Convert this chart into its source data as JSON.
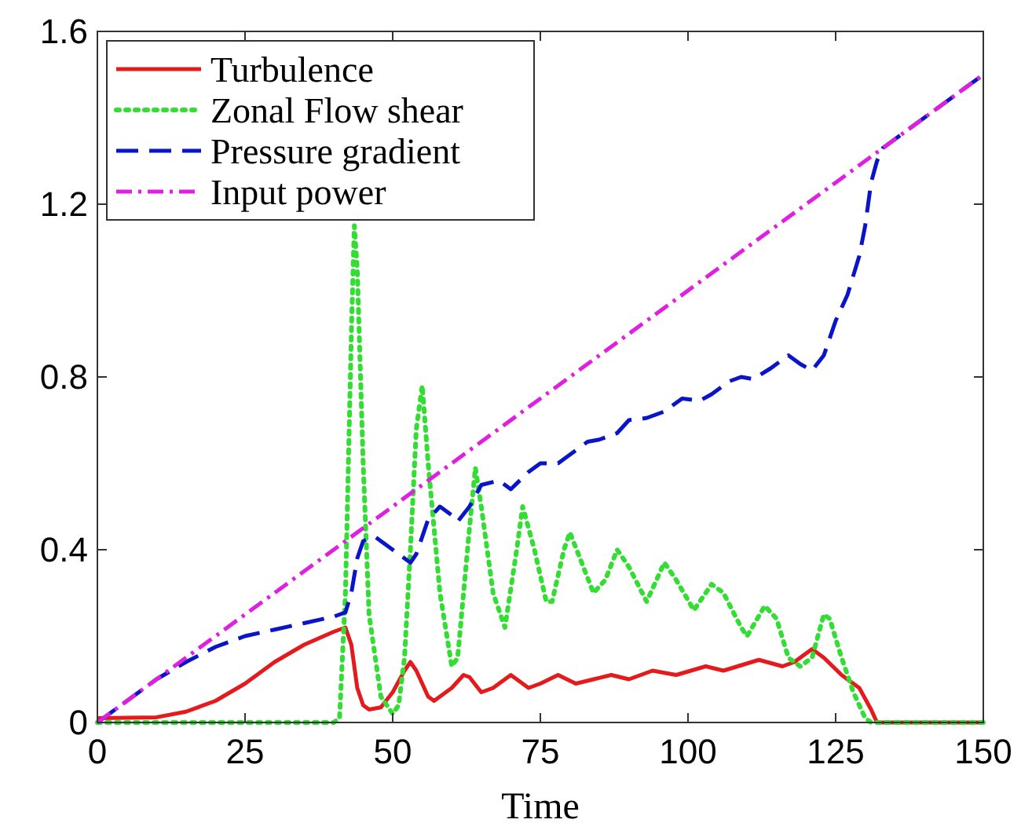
{
  "chart_data": {
    "type": "line",
    "xlabel": "Time",
    "xlim": [
      0,
      150
    ],
    "ylim": [
      0,
      1.6
    ],
    "xticks": [
      0,
      25,
      50,
      75,
      100,
      125,
      150
    ],
    "yticks": [
      0,
      0.4,
      0.8,
      1.2,
      1.6
    ],
    "grid": false,
    "legend": "top left",
    "series": [
      {
        "name": "Turbulence",
        "color": "#e41a1c",
        "line_style": "solid",
        "x": [
          0,
          10,
          15,
          20,
          25,
          30,
          35,
          40,
          42,
          43,
          44,
          45,
          46,
          48,
          50,
          52,
          53,
          54,
          56,
          57,
          60,
          62,
          63,
          65,
          67,
          70,
          71,
          73,
          75,
          78,
          81,
          84,
          87,
          90,
          94,
          98,
          103,
          106,
          112,
          116,
          118,
          121,
          123,
          126,
          129,
          131,
          132,
          150
        ],
        "values": [
          0.01,
          0.012,
          0.025,
          0.05,
          0.09,
          0.14,
          0.18,
          0.21,
          0.22,
          0.18,
          0.08,
          0.04,
          0.03,
          0.035,
          0.07,
          0.12,
          0.14,
          0.12,
          0.06,
          0.05,
          0.08,
          0.11,
          0.105,
          0.07,
          0.08,
          0.11,
          0.1,
          0.08,
          0.09,
          0.11,
          0.09,
          0.1,
          0.11,
          0.1,
          0.12,
          0.11,
          0.13,
          0.12,
          0.145,
          0.13,
          0.14,
          0.17,
          0.15,
          0.11,
          0.08,
          0.03,
          0,
          0
        ]
      },
      {
        "name": "Zonal Flow shear",
        "color": "#33dd33",
        "line_style": "dotted",
        "x": [
          0,
          40,
          41,
          42,
          43,
          43.5,
          44,
          45,
          46,
          48,
          50,
          51,
          52,
          53,
          54,
          55,
          56,
          58,
          60,
          61,
          63,
          64,
          65,
          67,
          69,
          71,
          72,
          74,
          76,
          77,
          79,
          80,
          82,
          84,
          86,
          88,
          90,
          93,
          96,
          98,
          101,
          104,
          106,
          109,
          110,
          113,
          115,
          117,
          119,
          121,
          123,
          124,
          126,
          128,
          130,
          131,
          150
        ],
        "values": [
          0,
          0,
          0.01,
          0.3,
          0.9,
          1.15,
          1.05,
          0.6,
          0.25,
          0.06,
          0.02,
          0.04,
          0.15,
          0.4,
          0.68,
          0.78,
          0.6,
          0.3,
          0.13,
          0.15,
          0.45,
          0.59,
          0.5,
          0.3,
          0.22,
          0.4,
          0.5,
          0.4,
          0.28,
          0.28,
          0.4,
          0.44,
          0.37,
          0.3,
          0.33,
          0.4,
          0.36,
          0.28,
          0.37,
          0.33,
          0.26,
          0.32,
          0.3,
          0.22,
          0.2,
          0.27,
          0.24,
          0.15,
          0.13,
          0.15,
          0.25,
          0.24,
          0.15,
          0.07,
          0.01,
          0,
          0
        ]
      },
      {
        "name": "Pressure gradient",
        "color": "#0a14c8",
        "line_style": "dashed",
        "x": [
          0,
          5,
          10,
          15,
          20,
          25,
          30,
          35,
          40,
          42,
          43,
          44,
          45,
          47,
          50,
          53,
          54,
          56,
          58,
          60,
          61,
          63,
          65,
          68,
          70,
          73,
          75,
          78,
          80,
          83,
          85,
          88,
          90,
          93,
          96,
          99,
          102,
          104,
          107,
          109,
          111,
          114,
          117,
          119,
          121,
          123,
          125,
          127,
          129,
          130,
          131,
          132,
          133,
          137,
          142,
          150
        ],
        "values": [
          0,
          0.05,
          0.1,
          0.14,
          0.175,
          0.2,
          0.215,
          0.23,
          0.245,
          0.255,
          0.3,
          0.38,
          0.42,
          0.43,
          0.4,
          0.37,
          0.39,
          0.47,
          0.5,
          0.48,
          0.465,
          0.5,
          0.55,
          0.56,
          0.54,
          0.58,
          0.6,
          0.6,
          0.62,
          0.65,
          0.655,
          0.67,
          0.7,
          0.705,
          0.72,
          0.75,
          0.745,
          0.76,
          0.79,
          0.8,
          0.795,
          0.82,
          0.85,
          0.83,
          0.815,
          0.85,
          0.93,
          0.99,
          1.08,
          1.15,
          1.25,
          1.3,
          1.33,
          1.37,
          1.42,
          1.5
        ]
      },
      {
        "name": "Input power",
        "color": "#e020e0",
        "line_style": "dashdot",
        "x": [
          0,
          150
        ],
        "values": [
          0,
          1.5
        ]
      }
    ]
  }
}
